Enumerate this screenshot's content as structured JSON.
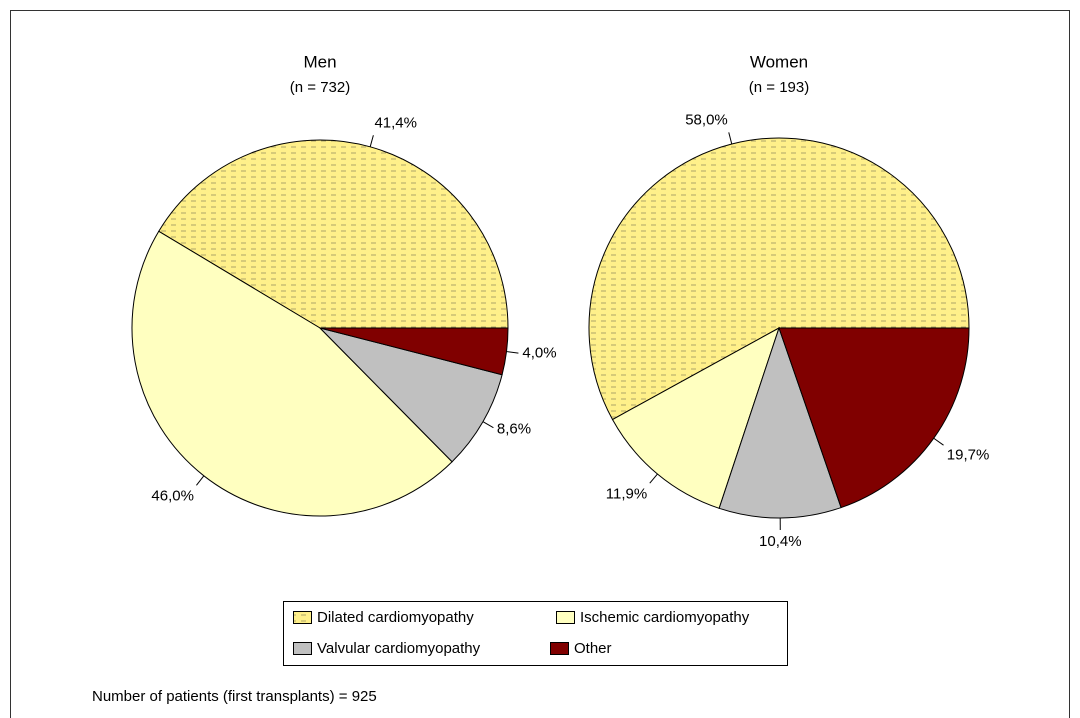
{
  "chart_data": [
    {
      "type": "pie",
      "title": "Men",
      "subtitle": "(n = 732)",
      "categories": [
        "Dilated cardiomyopathy",
        "Ischemic cardiomyopathy",
        "Valvular cardiomyopathy",
        "Other"
      ],
      "values": [
        41.4,
        46.0,
        8.6,
        4.0
      ],
      "value_labels": [
        "41,4%",
        "46,0%",
        "8,6%",
        "4,0%"
      ],
      "colors": [
        "#fff08a",
        "#ffffc0",
        "#c0c0c0",
        "#800000"
      ]
    },
    {
      "type": "pie",
      "title": "Women",
      "subtitle": "(n = 193)",
      "categories": [
        "Dilated cardiomyopathy",
        "Ischemic cardiomyopathy",
        "Valvular cardiomyopathy",
        "Other"
      ],
      "values": [
        58.0,
        11.9,
        10.4,
        19.7
      ],
      "value_labels": [
        "58,0%",
        "11,9%",
        "10,4%",
        "19,7%"
      ],
      "colors": [
        "#fff08a",
        "#ffffc0",
        "#c0c0c0",
        "#800000"
      ]
    }
  ],
  "footnote": "Number of patients (first transplants) = 925"
}
